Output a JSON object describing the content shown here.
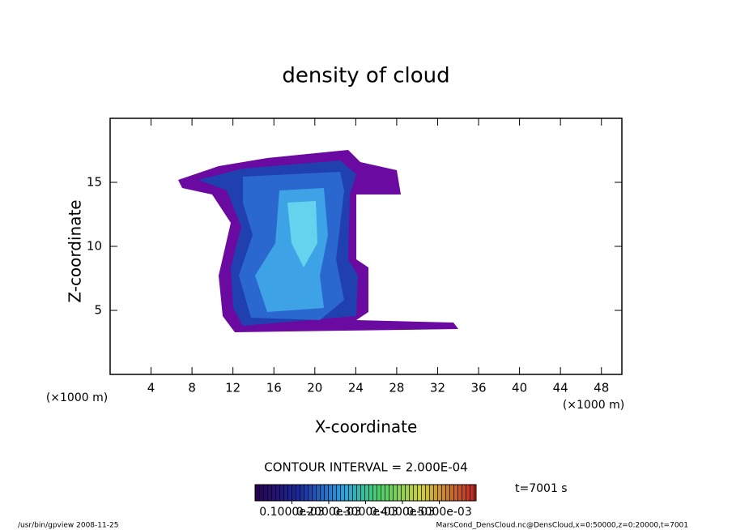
{
  "chart_data": {
    "type": "contour",
    "title": "density of cloud",
    "x_label": "X-coordinate",
    "y_label": "Z-coordinate",
    "x_unit": "(×1000 m)",
    "y_unit": "(×1000 m)",
    "xlim": [
      0,
      50
    ],
    "xticks": [
      4,
      8,
      12,
      16,
      20,
      24,
      28,
      32,
      36,
      40,
      44,
      48
    ],
    "ylim": [
      0,
      20
    ],
    "yticks": [
      5,
      10,
      15
    ],
    "contour_interval": "CONTOUR INTERVAL = 2.000E-04",
    "time_label": "t=7001 s",
    "clim": [
      0,
      0.0006
    ],
    "cticks": [
      {
        "value": 0.0001,
        "label": "0.1000e-03"
      },
      {
        "value": 0.0002,
        "label": "0.2000e-03"
      },
      {
        "value": 0.0003,
        "label": "0.3000e-03"
      },
      {
        "value": 0.0004,
        "label": "0.4000e-03"
      },
      {
        "value": 0.0005,
        "label": "0.5000e-03"
      }
    ],
    "footer_left": "/usr/bin/gpview  2008-11-25",
    "footer_right": "MarsCond_DensCloud.nc@DensCloud,x=0:50000,z=0:20000,t=7001"
  }
}
